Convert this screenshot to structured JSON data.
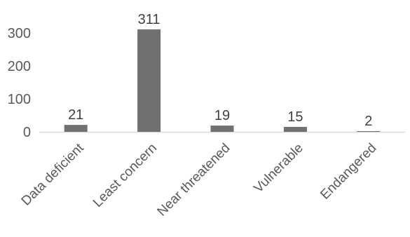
{
  "chart_data": {
    "type": "bar",
    "title": "",
    "xlabel": "",
    "ylabel": "",
    "categories": [
      "Data deficient",
      "Least concern",
      "Near threatened",
      "Vulnerable",
      "Endangered"
    ],
    "values": [
      21,
      311,
      19,
      15,
      2
    ],
    "data_labels": [
      "21",
      "311",
      "19",
      "15",
      "2"
    ],
    "ylim": [
      0,
      350
    ],
    "yticks": [
      0,
      100,
      200,
      300
    ],
    "ytick_labels": [
      "0",
      "100",
      "200",
      "300"
    ],
    "grid": false,
    "legend": "none",
    "bar_color": "#707070"
  }
}
